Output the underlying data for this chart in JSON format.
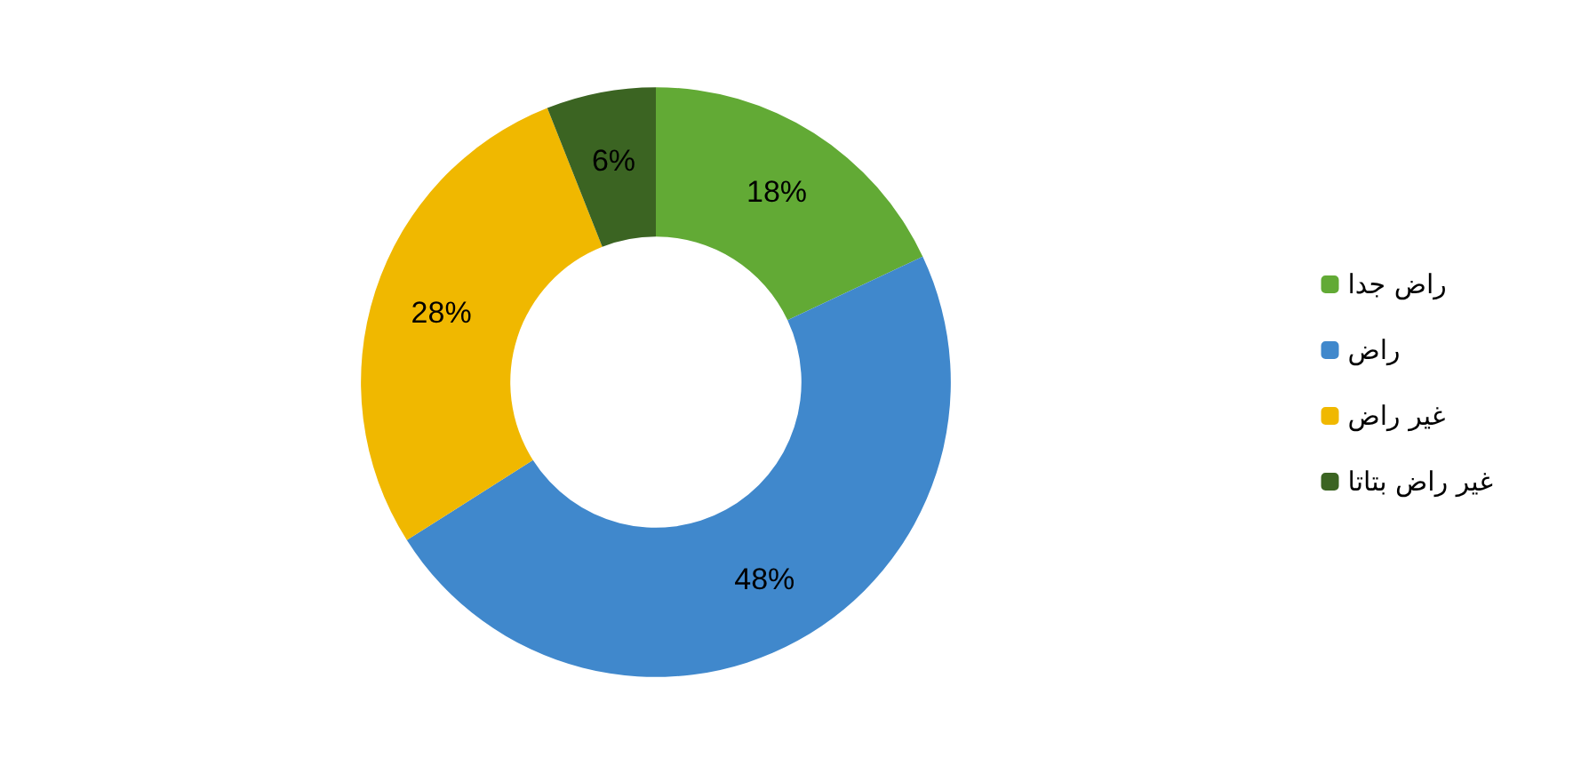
{
  "chart_data": {
    "type": "donut",
    "categories": [
      "راض جدا",
      "راض",
      "غير راض",
      "غير راض بتاتا"
    ],
    "values": [
      18,
      48,
      28,
      6
    ],
    "value_labels": [
      "18%",
      "48%",
      "28%",
      "6%"
    ],
    "colors": [
      "#62aa35",
      "#4088cc",
      "#f0b800",
      "#3b6422"
    ],
    "legend": "right"
  }
}
